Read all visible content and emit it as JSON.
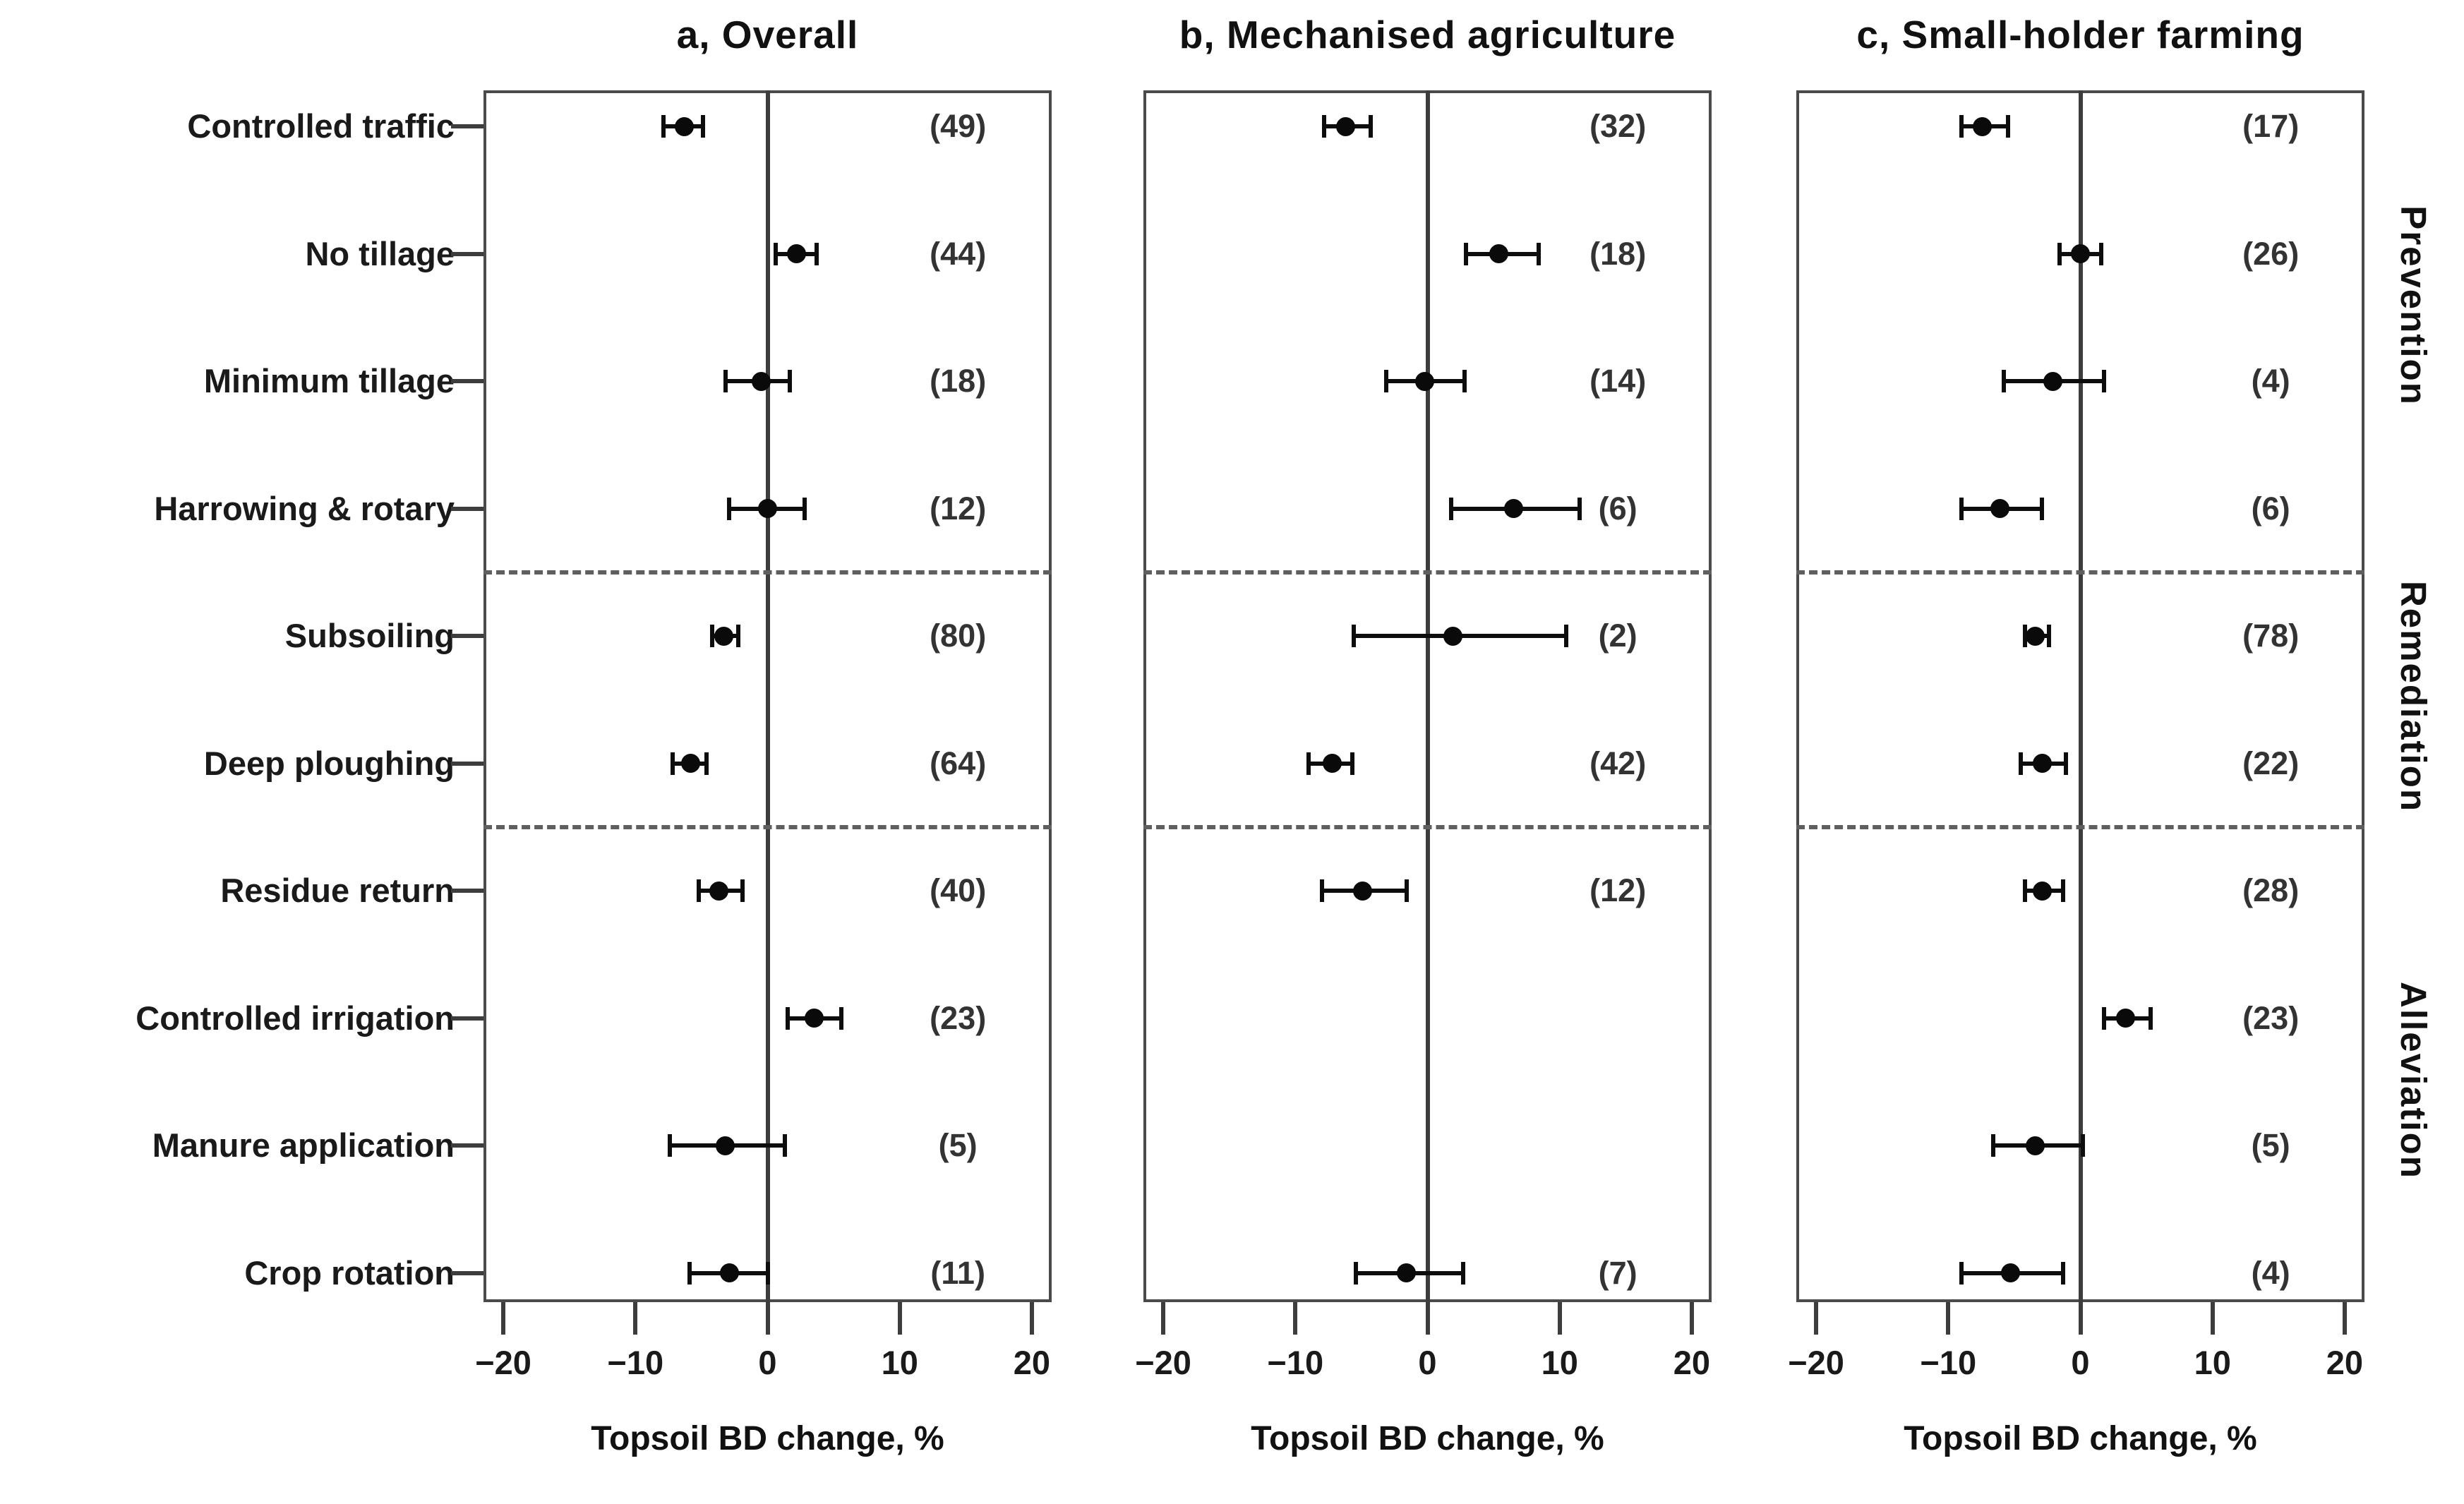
{
  "figure": {
    "panels": [
      {
        "id": "a",
        "title": "a, Overall"
      },
      {
        "id": "b",
        "title": "b, Mechanised agriculture"
      },
      {
        "id": "c",
        "title": "c, Small-holder farming"
      }
    ],
    "xlabel": "Topsoil BD change, %",
    "x_tick_labels": [
      "−20",
      "−10",
      "0",
      "10",
      "20"
    ],
    "group_labels": [
      "Prevention",
      "Remediation",
      "Alleviation"
    ],
    "colors": {
      "text": "#1a1a1a",
      "frame": "#4a4a4a",
      "marker": "#0d0d0d",
      "count": "#333333",
      "dashed": "#5f5f5f"
    }
  },
  "chart_data": {
    "type": "scatter",
    "subtype": "forest_plot_horizontal_error_bars",
    "categories": [
      "Controlled traffic",
      "No tillage",
      "Minimum tillage",
      "Harrowing & rotary",
      "Subsoiling",
      "Deep ploughing",
      "Residue return",
      "Controlled irrigation",
      "Manure application",
      "Crop rotation"
    ],
    "group_brackets": [
      {
        "label": "Prevention",
        "first_row": 1,
        "last_row": 4
      },
      {
        "label": "Remediation",
        "first_row": 5,
        "last_row": 6
      },
      {
        "label": "Alleviation",
        "first_row": 7,
        "last_row": 10
      }
    ],
    "separators_after_rows": [
      4,
      6
    ],
    "xlabel": "Topsoil BD change, %",
    "xlim": [
      -21.5,
      21.5
    ],
    "x_ticks": [
      -20,
      -10,
      0,
      10,
      20
    ],
    "zero_reference_line": 0,
    "series": [
      {
        "name": "a, Overall",
        "points": [
          {
            "label": "Controlled traffic",
            "mean": -6.3,
            "lo": -7.9,
            "hi": -4.9,
            "n": 49
          },
          {
            "label": "No tillage",
            "mean": 2.2,
            "lo": 0.6,
            "hi": 3.7,
            "n": 44
          },
          {
            "label": "Minimum tillage",
            "mean": -0.5,
            "lo": -3.2,
            "hi": 1.7,
            "n": 18
          },
          {
            "label": "Harrowing & rotary",
            "mean": 0.0,
            "lo": -2.9,
            "hi": 2.8,
            "n": 12
          },
          {
            "label": "Subsoiling",
            "mean": -3.3,
            "lo": -4.2,
            "hi": -2.2,
            "n": 80
          },
          {
            "label": "Deep ploughing",
            "mean": -5.8,
            "lo": -7.2,
            "hi": -4.6,
            "n": 64
          },
          {
            "label": "Residue return",
            "mean": -3.7,
            "lo": -5.2,
            "hi": -1.9,
            "n": 40
          },
          {
            "label": "Controlled irrigation",
            "mean": 3.5,
            "lo": 1.5,
            "hi": 5.6,
            "n": 23
          },
          {
            "label": "Manure application",
            "mean": -3.2,
            "lo": -7.4,
            "hi": 1.3,
            "n": 5
          },
          {
            "label": "Crop rotation",
            "mean": -2.9,
            "lo": -5.9,
            "hi": 0.0,
            "n": 11
          }
        ]
      },
      {
        "name": "b, Mechanised agriculture",
        "points": [
          {
            "label": "Controlled traffic",
            "mean": -6.2,
            "lo": -7.8,
            "hi": -4.3,
            "n": 32
          },
          {
            "label": "No tillage",
            "mean": 5.4,
            "lo": 2.9,
            "hi": 8.4,
            "n": 18
          },
          {
            "label": "Minimum tillage",
            "mean": -0.2,
            "lo": -3.1,
            "hi": 2.8,
            "n": 14
          },
          {
            "label": "Harrowing & rotary",
            "mean": 6.5,
            "lo": 1.8,
            "hi": 11.5,
            "n": 6
          },
          {
            "label": "Subsoiling",
            "mean": 1.9,
            "lo": -5.6,
            "hi": 10.5,
            "n": 2
          },
          {
            "label": "Deep ploughing",
            "mean": -7.2,
            "lo": -9.0,
            "hi": -5.7,
            "n": 42
          },
          {
            "label": "Residue return",
            "mean": -4.9,
            "lo": -8.0,
            "hi": -1.6,
            "n": 12
          },
          null,
          null,
          {
            "label": "Crop rotation",
            "mean": -1.6,
            "lo": -5.4,
            "hi": 2.7,
            "n": 7
          }
        ]
      },
      {
        "name": "c, Small-holder farming",
        "points": [
          {
            "label": "Controlled traffic",
            "mean": -7.4,
            "lo": -9.0,
            "hi": -5.5,
            "n": 17
          },
          {
            "label": "No tillage",
            "mean": 0.0,
            "lo": -1.6,
            "hi": 1.6,
            "n": 26
          },
          {
            "label": "Minimum tillage",
            "mean": -2.1,
            "lo": -5.8,
            "hi": 1.8,
            "n": 4
          },
          {
            "label": "Harrowing & rotary",
            "mean": -6.1,
            "lo": -9.0,
            "hi": -2.9,
            "n": 6
          },
          {
            "label": "Subsoiling",
            "mean": -3.4,
            "lo": -4.2,
            "hi": -2.4,
            "n": 78
          },
          {
            "label": "Deep ploughing",
            "mean": -2.9,
            "lo": -4.5,
            "hi": -1.1,
            "n": 22
          },
          {
            "label": "Residue return",
            "mean": -2.9,
            "lo": -4.2,
            "hi": -1.3,
            "n": 28
          },
          {
            "label": "Controlled irrigation",
            "mean": 3.4,
            "lo": 1.8,
            "hi": 5.3,
            "n": 23
          },
          {
            "label": "Manure application",
            "mean": -3.4,
            "lo": -6.6,
            "hi": 0.2,
            "n": 5
          },
          {
            "label": "Crop rotation",
            "mean": -5.3,
            "lo": -9.0,
            "hi": -1.3,
            "n": 4
          }
        ]
      }
    ]
  }
}
